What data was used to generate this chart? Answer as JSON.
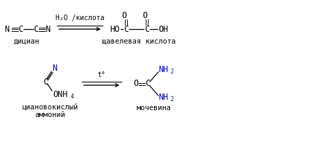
{
  "bg_color": "#ffffff",
  "text_color": "#000000",
  "blue_color": "#0000bb",
  "fs_mol": 8.5,
  "fs_lbl": 7.5,
  "fs_sub": 5.5,
  "fs_arrow": 7,
  "r1_reactant_label": "дициан",
  "r1_arrow_label": "H₂O /кислота",
  "r1_product_label": "щавелевая кислота",
  "r2_arrow_label": "t°",
  "r2_reactant_label1": "циановокислый",
  "r2_reactant_label2": "аммоний",
  "r2_product_label": "мочевина"
}
